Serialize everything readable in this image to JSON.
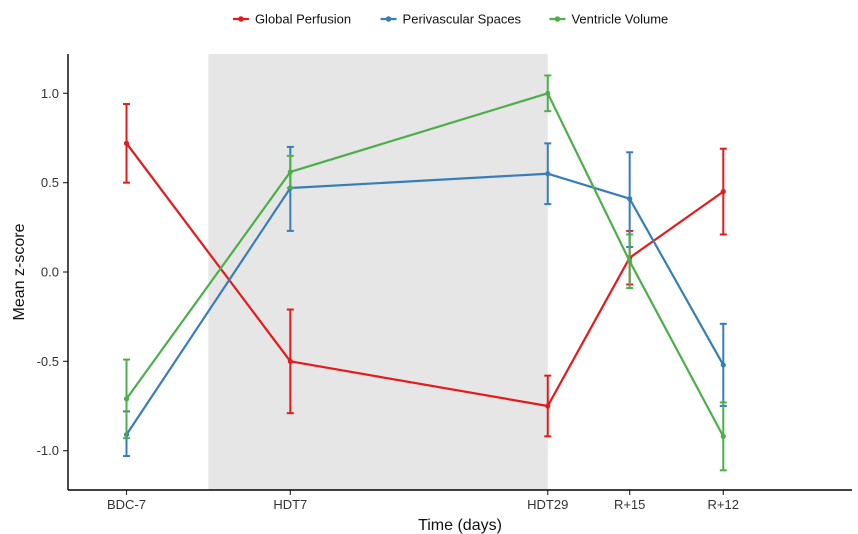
{
  "chart_data": {
    "type": "line",
    "xlabel": "Time (days)",
    "ylabel": "Mean z-score",
    "x_scale": "days",
    "xlim": [
      -12,
      55
    ],
    "ylim": [
      -1.22,
      1.22
    ],
    "x": [
      -7,
      7,
      29,
      36,
      44
    ],
    "x_tick_labels": [
      "BDC-7",
      "HDT7",
      "HDT29",
      "R+15",
      "R+12"
    ],
    "y_ticks": [
      -1.0,
      -0.5,
      0.0,
      0.5,
      1.0
    ],
    "y_tick_labels": [
      "-1.0",
      "-0.5",
      "0.0",
      "0.5",
      "1.0"
    ],
    "shaded_region": {
      "x_start": 0,
      "x_end": 29,
      "color": "#e6e6e6"
    },
    "legend_position": "top",
    "grid": false,
    "series": [
      {
        "name": "Global Perfusion",
        "color": "#e41a1c",
        "values": [
          0.72,
          -0.5,
          -0.75,
          0.08,
          0.45
        ],
        "error_low": [
          0.5,
          -0.79,
          -0.92,
          -0.07,
          0.21
        ],
        "error_high": [
          0.94,
          -0.21,
          -0.58,
          0.23,
          0.69
        ]
      },
      {
        "name": "Perivascular Spaces",
        "color": "#377eb8",
        "values": [
          -0.91,
          0.47,
          0.55,
          0.41,
          -0.52
        ],
        "error_low": [
          -1.03,
          0.23,
          0.38,
          0.14,
          -0.75
        ],
        "error_high": [
          -0.78,
          0.7,
          0.72,
          0.67,
          -0.29
        ]
      },
      {
        "name": "Ventricle Volume",
        "color": "#4daf4a",
        "values": [
          -0.71,
          0.56,
          1.0,
          0.06,
          -0.92
        ],
        "error_low": [
          -0.93,
          0.47,
          0.9,
          -0.09,
          -1.11
        ],
        "error_high": [
          -0.49,
          0.65,
          1.1,
          0.21,
          -0.73
        ]
      }
    ]
  }
}
